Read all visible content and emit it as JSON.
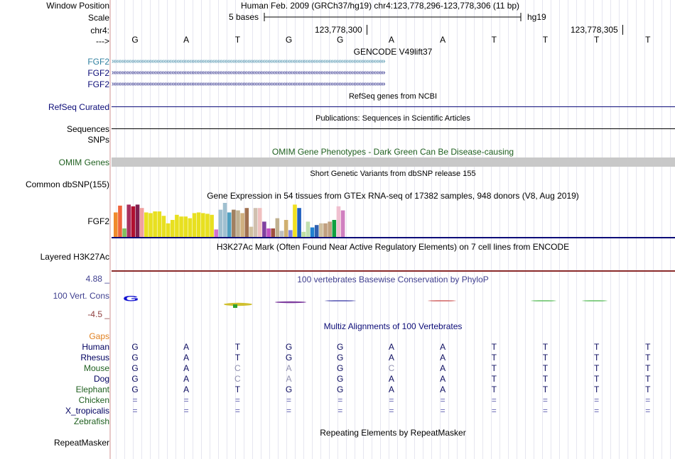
{
  "header": {
    "window_position_label": "Window Position",
    "assembly_text": "Human Feb. 2009 (GRCh37/hg19)   chr4:123,778,296-123,778,306 (11 bp)",
    "scale_label": "Scale",
    "scale_text": "5 bases",
    "scale_db": "hg19",
    "chrom_label": "chr4:",
    "pos1": "123,778,300",
    "pos2": "123,778,305",
    "strand_arrow": "--->",
    "bases": [
      "G",
      "A",
      "T",
      "G",
      "G",
      "A",
      "A",
      "T",
      "T",
      "T",
      "T"
    ]
  },
  "gencode": {
    "title": "GENCODE V49lift37",
    "genes": [
      "FGF2",
      "FGF2",
      "FGF2"
    ],
    "arrows": "›››››››››››››››››››››››››››››››››››››››››››››››››››››››››››››››››››››››››››››››››››››››››››››››››››››››››››››››››››››››››››››››››››››››››››››››››››››››››››››››››››››"
  },
  "refseq": {
    "title": "RefSeq genes from NCBI",
    "label": "RefSeq Curated"
  },
  "publications": {
    "title": "Publications: Sequences in Scientific Articles",
    "label1": "Sequences",
    "label2": "SNPs"
  },
  "omim": {
    "title": "OMIM Gene Phenotypes - Dark Green Can Be Disease-causing",
    "label": "OMIM Genes"
  },
  "dbsnp": {
    "title": "Short Genetic Variants from dbSNP release 155",
    "label": "Common dbSNP(155)"
  },
  "gtex": {
    "title": "Gene Expression in 54 tissues from GTEx RNA-seq of 17382 samples, 948 donors (V8, Aug 2019)",
    "label": "FGF2",
    "bars": [
      {
        "v": 0.72,
        "c": "#f08a2c"
      },
      {
        "v": 0.92,
        "c": "#f0643c"
      },
      {
        "v": 0.25,
        "c": "#80c060"
      },
      {
        "v": 0.95,
        "c": "#a83060"
      },
      {
        "v": 0.9,
        "c": "#b01030"
      },
      {
        "v": 0.95,
        "c": "#802050"
      },
      {
        "v": 0.85,
        "c": "#f0a0a0"
      },
      {
        "v": 0.72,
        "c": "#e8e020"
      },
      {
        "v": 0.7,
        "c": "#e8e020"
      },
      {
        "v": 0.75,
        "c": "#e8e020"
      },
      {
        "v": 0.75,
        "c": "#e8e020"
      },
      {
        "v": 0.62,
        "c": "#e8e020"
      },
      {
        "v": 0.4,
        "c": "#e8e020"
      },
      {
        "v": 0.5,
        "c": "#e8e020"
      },
      {
        "v": 0.65,
        "c": "#e8e020"
      },
      {
        "v": 0.6,
        "c": "#e8e020"
      },
      {
        "v": 0.6,
        "c": "#e8e020"
      },
      {
        "v": 0.55,
        "c": "#e8e020"
      },
      {
        "v": 0.7,
        "c": "#e8e020"
      },
      {
        "v": 0.72,
        "c": "#e8e020"
      },
      {
        "v": 0.7,
        "c": "#e8e020"
      },
      {
        "v": 0.68,
        "c": "#e8e020"
      },
      {
        "v": 0.65,
        "c": "#e8e020"
      },
      {
        "v": 0.22,
        "c": "#d070d0"
      },
      {
        "v": 0.8,
        "c": "#a0c0d0"
      },
      {
        "v": 1.0,
        "c": "#a0c0d0"
      },
      {
        "v": 0.72,
        "c": "#50a0c0"
      },
      {
        "v": 0.8,
        "c": "#a08060"
      },
      {
        "v": 0.78,
        "c": "#c0b090"
      },
      {
        "v": 0.7,
        "c": "#d0b080"
      },
      {
        "v": 0.85,
        "c": "#a07050"
      },
      {
        "v": 0.3,
        "c": "#d0c0a0"
      },
      {
        "v": 0.85,
        "c": "#d0c0b0"
      },
      {
        "v": 0.85,
        "c": "#f0c0c0"
      },
      {
        "v": 0.45,
        "c": "#8040a0"
      },
      {
        "v": 0.25,
        "c": "#c050c0"
      },
      {
        "v": 0.25,
        "c": "#a05040"
      },
      {
        "v": 0.55,
        "c": "#c0b090"
      },
      {
        "v": 0.18,
        "c": "#c0c0c0"
      },
      {
        "v": 0.5,
        "c": "#d0b070"
      },
      {
        "v": 0.2,
        "c": "#8080e0"
      },
      {
        "v": 0.95,
        "c": "#f0e020"
      },
      {
        "v": 0.85,
        "c": "#2060c0"
      },
      {
        "v": 0.15,
        "c": "#c0e0a0"
      },
      {
        "v": 0.45,
        "c": "#c0e0b0"
      },
      {
        "v": 0.28,
        "c": "#2080d0"
      },
      {
        "v": 0.35,
        "c": "#3060b0"
      },
      {
        "v": 0.4,
        "c": "#d0c0a0"
      },
      {
        "v": 0.4,
        "c": "#c0a080"
      },
      {
        "v": 0.45,
        "c": "#c0a080"
      },
      {
        "v": 0.5,
        "c": "#10a040"
      },
      {
        "v": 0.9,
        "c": "#f0c0d0"
      },
      {
        "v": 0.78,
        "c": "#d080c0"
      },
      {
        "v": 0.0,
        "c": "#ffffff"
      }
    ]
  },
  "h3k27ac": {
    "title": "H3K27Ac Mark (Often Found Near Active Regulatory Elements) on 7 cell lines from ENCODE",
    "label": "Layered H3K27Ac"
  },
  "cons": {
    "title": "100 vertebrates Basewise Conservation by PhyloP",
    "label": "100 Vert. Cons",
    "max": "4.88 _",
    "min": "-4.5 _",
    "logo_letter": "G"
  },
  "multiz": {
    "title": "Multiz Alignments of 100 Vertebrates",
    "gaps_label": "Gaps",
    "species": [
      {
        "name": "Human",
        "color": "#000060",
        "bases": [
          "G",
          "A",
          "T",
          "G",
          "G",
          "A",
          "A",
          "T",
          "T",
          "T",
          "T"
        ]
      },
      {
        "name": "Rhesus",
        "color": "#000060",
        "bases": [
          "G",
          "A",
          "T",
          "G",
          "G",
          "A",
          "A",
          "T",
          "T",
          "T",
          "T"
        ]
      },
      {
        "name": "Mouse",
        "color": "#206020",
        "bases": [
          "G",
          "A",
          "C",
          "A",
          "G",
          "C",
          "A",
          "T",
          "T",
          "T",
          "T"
        ]
      },
      {
        "name": "Dog",
        "color": "#000060",
        "bases": [
          "G",
          "A",
          "C",
          "A",
          "G",
          "A",
          "A",
          "T",
          "T",
          "T",
          "T"
        ]
      },
      {
        "name": "Elephant",
        "color": "#206020",
        "bases": [
          "G",
          "A",
          "T",
          "G",
          "G",
          "A",
          "A",
          "T",
          "T",
          "T",
          "T"
        ]
      },
      {
        "name": "Chicken",
        "color": "#206020",
        "bases": [
          "=",
          "=",
          "=",
          "=",
          "=",
          "=",
          "=",
          "=",
          "=",
          "=",
          "="
        ]
      },
      {
        "name": "X_tropicalis",
        "color": "#000060",
        "bases": [
          "=",
          "=",
          "=",
          "=",
          "=",
          "=",
          "=",
          "=",
          "=",
          "=",
          "="
        ]
      },
      {
        "name": "Zebrafish",
        "color": "#206020",
        "bases": []
      }
    ]
  },
  "repeatmasker": {
    "title": "Repeating Elements by RepeatMasker",
    "label": "RepeatMasker"
  },
  "colors": {
    "gencode": "#0c0c78",
    "gencode_first": "#3080a0",
    "refseq": "#0c0c78",
    "omim_bar": "#c8c8c8",
    "cons_label": "#404090",
    "cons_min": "#904040",
    "gaps": "#e08020"
  }
}
